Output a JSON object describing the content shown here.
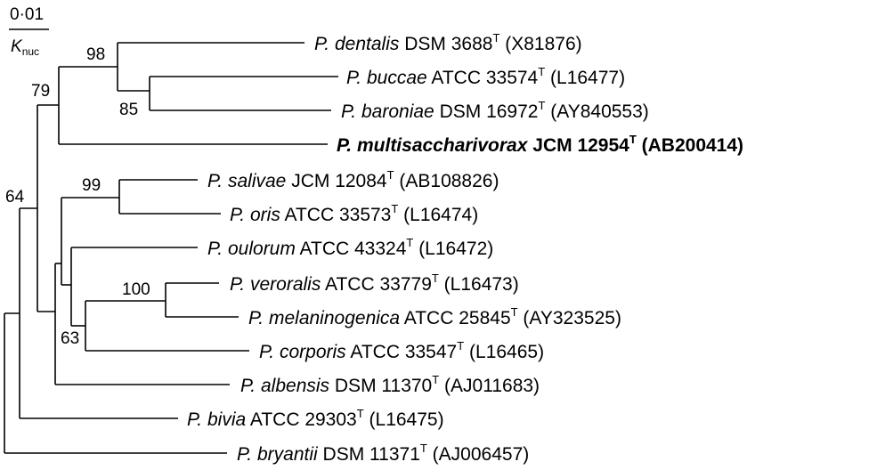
{
  "scale_bar": {
    "value": "0·01",
    "label_main": "K",
    "label_sub": "nuc"
  },
  "taxa": [
    {
      "genus": "P.",
      "species": "dentalis",
      "strain": "DSM 3688",
      "type_mark": "T",
      "accession": "(X81876)",
      "bold": false
    },
    {
      "genus": "P.",
      "species": "buccae",
      "strain": "ATCC 33574",
      "type_mark": "T",
      "accession": "(L16477)",
      "bold": false
    },
    {
      "genus": "P.",
      "species": "baroniae",
      "strain": "DSM 16972",
      "type_mark": "T",
      "accession": "(AY840553)",
      "bold": false
    },
    {
      "genus": "P.",
      "species": "multisaccharivorax",
      "strain": "JCM 12954",
      "type_mark": "T",
      "accession": "(AB200414)",
      "bold": true
    },
    {
      "genus": "P.",
      "species": "salivae",
      "strain": "JCM 12084",
      "type_mark": "T",
      "accession": "(AB108826)",
      "bold": false
    },
    {
      "genus": "P.",
      "species": "oris",
      "strain": "ATCC 33573",
      "type_mark": "T",
      "accession": "(L16474)",
      "bold": false
    },
    {
      "genus": "P.",
      "species": "oulorum",
      "strain": "ATCC 43324",
      "type_mark": "T",
      "accession": "(L16472)",
      "bold": false
    },
    {
      "genus": "P.",
      "species": "veroralis",
      "strain": "ATCC 33779",
      "type_mark": "T",
      "accession": "(L16473)",
      "bold": false
    },
    {
      "genus": "P.",
      "species": "melaninogenica",
      "strain": "ATCC 25845",
      "type_mark": "T",
      "accession": "(AY323525)",
      "bold": false
    },
    {
      "genus": "P.",
      "species": "corporis",
      "strain": "ATCC 33547",
      "type_mark": "T",
      "accession": "(L16465)",
      "bold": false
    },
    {
      "genus": "P.",
      "species": "albensis",
      "strain": "DSM 11370",
      "type_mark": "T",
      "accession": "(AJ011683)",
      "bold": false
    },
    {
      "genus": "P.",
      "species": "bivia",
      "strain": "ATCC 29303",
      "type_mark": "T",
      "accession": "(L16475)",
      "bold": false
    },
    {
      "genus": "P.",
      "species": "bryantii",
      "strain": "DSM 11371",
      "type_mark": "T",
      "accession": "(AJ006457)",
      "bold": false
    }
  ],
  "bootstrap": [
    "98",
    "85",
    "79",
    "99",
    "100",
    "63",
    "64"
  ]
}
